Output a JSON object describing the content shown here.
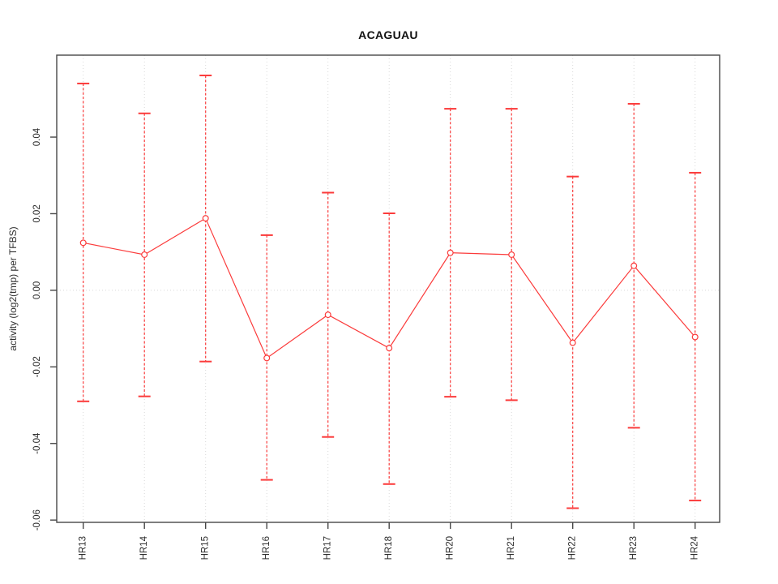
{
  "chart_data": {
    "type": "errorbar-line",
    "title": "ACAGUAU",
    "ylabel": "activity (log2(tmp) per TFBS)",
    "xlabel": "",
    "categories": [
      "HR13",
      "HR14",
      "HR15",
      "HR16",
      "HR17",
      "HR18",
      "HR20",
      "HR21",
      "HR22",
      "HR23",
      "HR24"
    ],
    "series": [
      {
        "name": "activity",
        "centers": [
          0.0124,
          0.0093,
          0.0188,
          -0.0177,
          -0.0064,
          -0.0151,
          0.0098,
          0.0093,
          -0.0137,
          0.0064,
          -0.0122
        ],
        "upper": [
          0.054,
          0.0462,
          0.0561,
          0.0144,
          0.0255,
          0.0201,
          0.0474,
          0.0474,
          0.0297,
          0.0487,
          0.0307
        ],
        "lower": [
          -0.029,
          -0.0277,
          -0.0186,
          -0.0495,
          -0.0383,
          -0.0506,
          -0.0278,
          -0.0287,
          -0.0569,
          -0.0359,
          -0.0549
        ]
      }
    ],
    "yticks": {
      "values": [
        0.04,
        0.02,
        0.0,
        -0.02,
        -0.04,
        -0.06
      ],
      "labels": [
        "0.04",
        "0.02",
        "0.00",
        "-0.02",
        "-0.04",
        "-0.06"
      ]
    },
    "ylim": [
      -0.0606,
      0.0614
    ],
    "grid": {
      "vertical_at_categories": true,
      "horizontal_at_zero": true,
      "style": "dotted"
    },
    "legend": "none",
    "colors": {
      "series": "#fb3b3b",
      "grid": "#d9d9d9",
      "axis": "#474747",
      "text": "#2e2e2e"
    }
  }
}
